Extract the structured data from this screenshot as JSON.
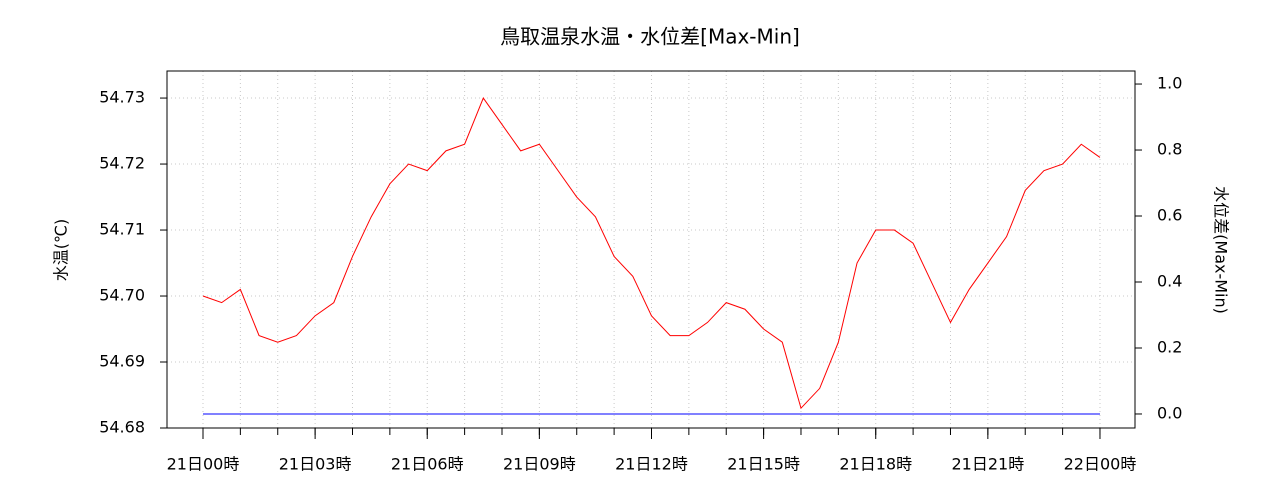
{
  "chart_data": {
    "type": "line",
    "title": "鳥取温泉水温・水位差[Max-Min]",
    "ylabel": "水温(℃)",
    "y2label": "水位差(Max-Min)",
    "x": [
      0,
      0.5,
      1,
      1.5,
      2,
      2.5,
      3,
      3.5,
      4,
      4.5,
      5,
      5.5,
      6,
      6.5,
      7,
      7.5,
      8,
      8.5,
      9,
      9.5,
      10,
      10.5,
      11,
      11.5,
      12,
      12.5,
      13,
      13.5,
      14,
      14.5,
      15,
      15.5,
      16,
      16.5,
      17,
      17.5,
      18,
      18.5,
      19,
      19.5,
      20,
      20.5,
      21,
      21.5,
      22,
      22.5,
      23,
      23.5,
      24
    ],
    "series": [
      {
        "name": "水温",
        "color": "#ff0000",
        "values": [
          54.7,
          54.699,
          54.701,
          54.694,
          54.693,
          54.694,
          54.697,
          54.699,
          54.706,
          54.712,
          54.717,
          54.72,
          54.719,
          54.722,
          54.723,
          54.73,
          54.726,
          54.722,
          54.723,
          54.719,
          54.715,
          54.712,
          54.706,
          54.703,
          54.697,
          54.694,
          54.694,
          54.696,
          54.699,
          54.698,
          54.695,
          54.693,
          54.683,
          54.686,
          54.693,
          54.705,
          54.71,
          54.71,
          54.708,
          54.702,
          54.696,
          54.701,
          54.705,
          54.709,
          54.716,
          54.719,
          54.72,
          54.723,
          54.721
        ]
      },
      {
        "name": "水位差",
        "color": "#0000ff",
        "axis": "y2",
        "values": [
          0,
          0,
          0,
          0,
          0,
          0,
          0,
          0,
          0,
          0,
          0,
          0,
          0,
          0,
          0,
          0,
          0,
          0,
          0,
          0,
          0,
          0,
          0,
          0,
          0,
          0,
          0,
          0,
          0,
          0,
          0,
          0,
          0,
          0,
          0,
          0,
          0,
          0,
          0,
          0,
          0,
          0,
          0,
          0,
          0,
          0,
          0,
          0,
          0
        ]
      }
    ],
    "xlim": [
      -0.963,
      24.937
    ],
    "xticks": [
      {
        "value": 0,
        "label": "21日00時"
      },
      {
        "value": 3,
        "label": "21日03時"
      },
      {
        "value": 6,
        "label": "21日06時"
      },
      {
        "value": 9,
        "label": "21日09時"
      },
      {
        "value": 12,
        "label": "21日12時"
      },
      {
        "value": 15,
        "label": "21日15時"
      },
      {
        "value": 18,
        "label": "21日18時"
      },
      {
        "value": 21,
        "label": "21日21時"
      },
      {
        "value": 24,
        "label": "22日00時"
      }
    ],
    "xgrid": [
      0,
      1,
      2,
      3,
      4,
      5,
      6,
      7,
      8,
      9,
      10,
      11,
      12,
      13,
      14,
      15,
      16,
      17,
      18,
      19,
      20,
      21,
      22,
      23,
      24
    ],
    "ylim": [
      54.68,
      54.7341
    ],
    "yticks": [
      54.68,
      54.69,
      {
        "value": 54.7,
        "label": "54.70"
      },
      54.71,
      54.72,
      54.73
    ],
    "y2lim": [
      -0.0425,
      1.0395
    ],
    "y2ticks": [
      {
        "value": 0,
        "label": "0.0"
      },
      0.2,
      0.4,
      0.6,
      0.8,
      {
        "value": 1,
        "label": "1.0"
      }
    ],
    "grid": true
  }
}
